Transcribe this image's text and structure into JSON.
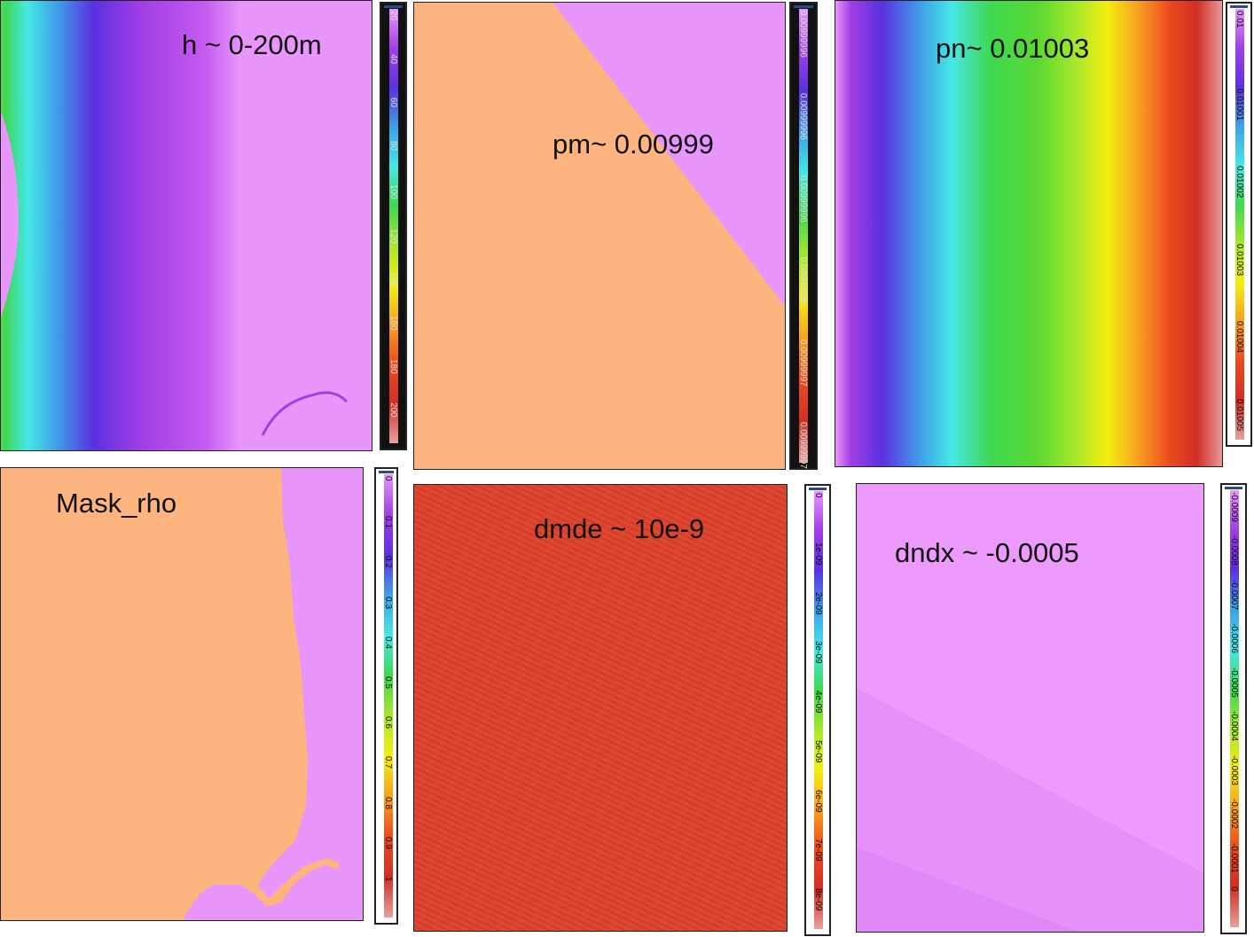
{
  "panels": [
    {
      "id": "h",
      "label": "h ~ 0-200m"
    },
    {
      "id": "pm",
      "label": "pm~ 0.00999"
    },
    {
      "id": "pn",
      "label": "pn~ 0.01003"
    },
    {
      "id": "mask",
      "label": "Mask_rho"
    },
    {
      "id": "dmde",
      "label": "dmde ~ 10e-9"
    },
    {
      "id": "dndx",
      "label": "dndx ~ -0.0005"
    }
  ],
  "colorbars": {
    "h": [
      "20",
      "40",
      "60",
      "80",
      "100",
      "120",
      "140",
      "160",
      "180",
      "200"
    ],
    "pm": [
      "0.00999996",
      "0.00999996",
      "0.00999996",
      "0.00999996",
      "0.00999997",
      "0.00999997"
    ],
    "pn": [
      "0.01",
      "0.01001",
      "0.01002",
      "0.01003",
      "0.01004",
      "0.01005"
    ],
    "mask": [
      "0",
      "0.1",
      "0.2",
      "0.3",
      "0.4",
      "0.5",
      "0.6",
      "0.7",
      "0.8",
      "0.9",
      "1"
    ],
    "dmde": [
      "0",
      "1e-09",
      "2e-09",
      "3e-09",
      "4e-09",
      "5e-09",
      "6e-09",
      "7e-09",
      "8e-09"
    ],
    "dndx": [
      "-0.0009",
      "-0.0008",
      "-0.0007",
      "-0.0006",
      "-0.0005",
      "-0.0004",
      "-0.0003",
      "-0.0002",
      "-0.0001",
      "0"
    ]
  },
  "colors": {
    "land": "#fdb47f",
    "ocean": "#e896fc",
    "dmde_red": "#de4630",
    "rainbow": [
      "#e896fc",
      "#a23ee6",
      "#5a30e0",
      "#3fa0e8",
      "#46e8e6",
      "#3fd850",
      "#a8e82a",
      "#f4ee10",
      "#f8a020",
      "#ec4a1e",
      "#d22e26",
      "#e8a0a0"
    ]
  }
}
